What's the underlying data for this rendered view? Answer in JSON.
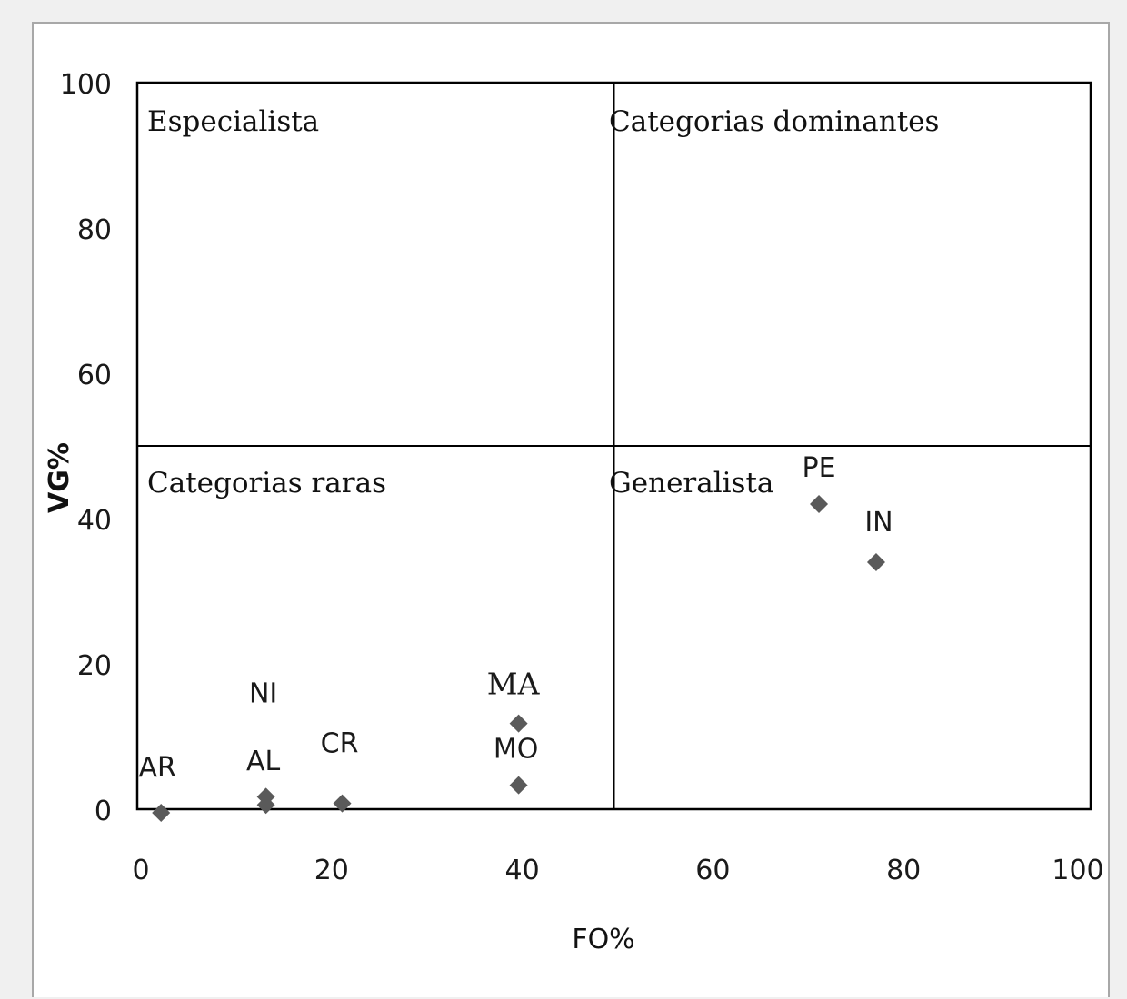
{
  "chart_data": {
    "type": "scatter",
    "title": "",
    "xlabel": "FO%",
    "ylabel": "VG%",
    "xlim": [
      0,
      100
    ],
    "ylim": [
      0,
      100
    ],
    "xticks": [
      0,
      20,
      40,
      60,
      80,
      100
    ],
    "yticks": [
      0,
      20,
      40,
      60,
      80,
      100
    ],
    "grid": false,
    "divider": {
      "x": 50,
      "y": 50
    },
    "quadrants": {
      "top_left": "Especialista",
      "top_right": "Categorias dominantes",
      "bottom_left": "Categorias raras",
      "bottom_right": "Generalista"
    },
    "marker_color": "#5a5a5a",
    "points": [
      {
        "label": "AR",
        "x": 2.5,
        "y": -0.5
      },
      {
        "label": "NI",
        "x": 13.5,
        "y": 1.7
      },
      {
        "label": "AL",
        "x": 13.5,
        "y": 0.6
      },
      {
        "label": "CR",
        "x": 21.5,
        "y": 0.8
      },
      {
        "label": "MA",
        "x": 40,
        "y": 11.8
      },
      {
        "label": "MO",
        "x": 40,
        "y": 3.3
      },
      {
        "label": "PE",
        "x": 71.5,
        "y": 42
      },
      {
        "label": "IN",
        "x": 77.5,
        "y": 34
      }
    ]
  }
}
